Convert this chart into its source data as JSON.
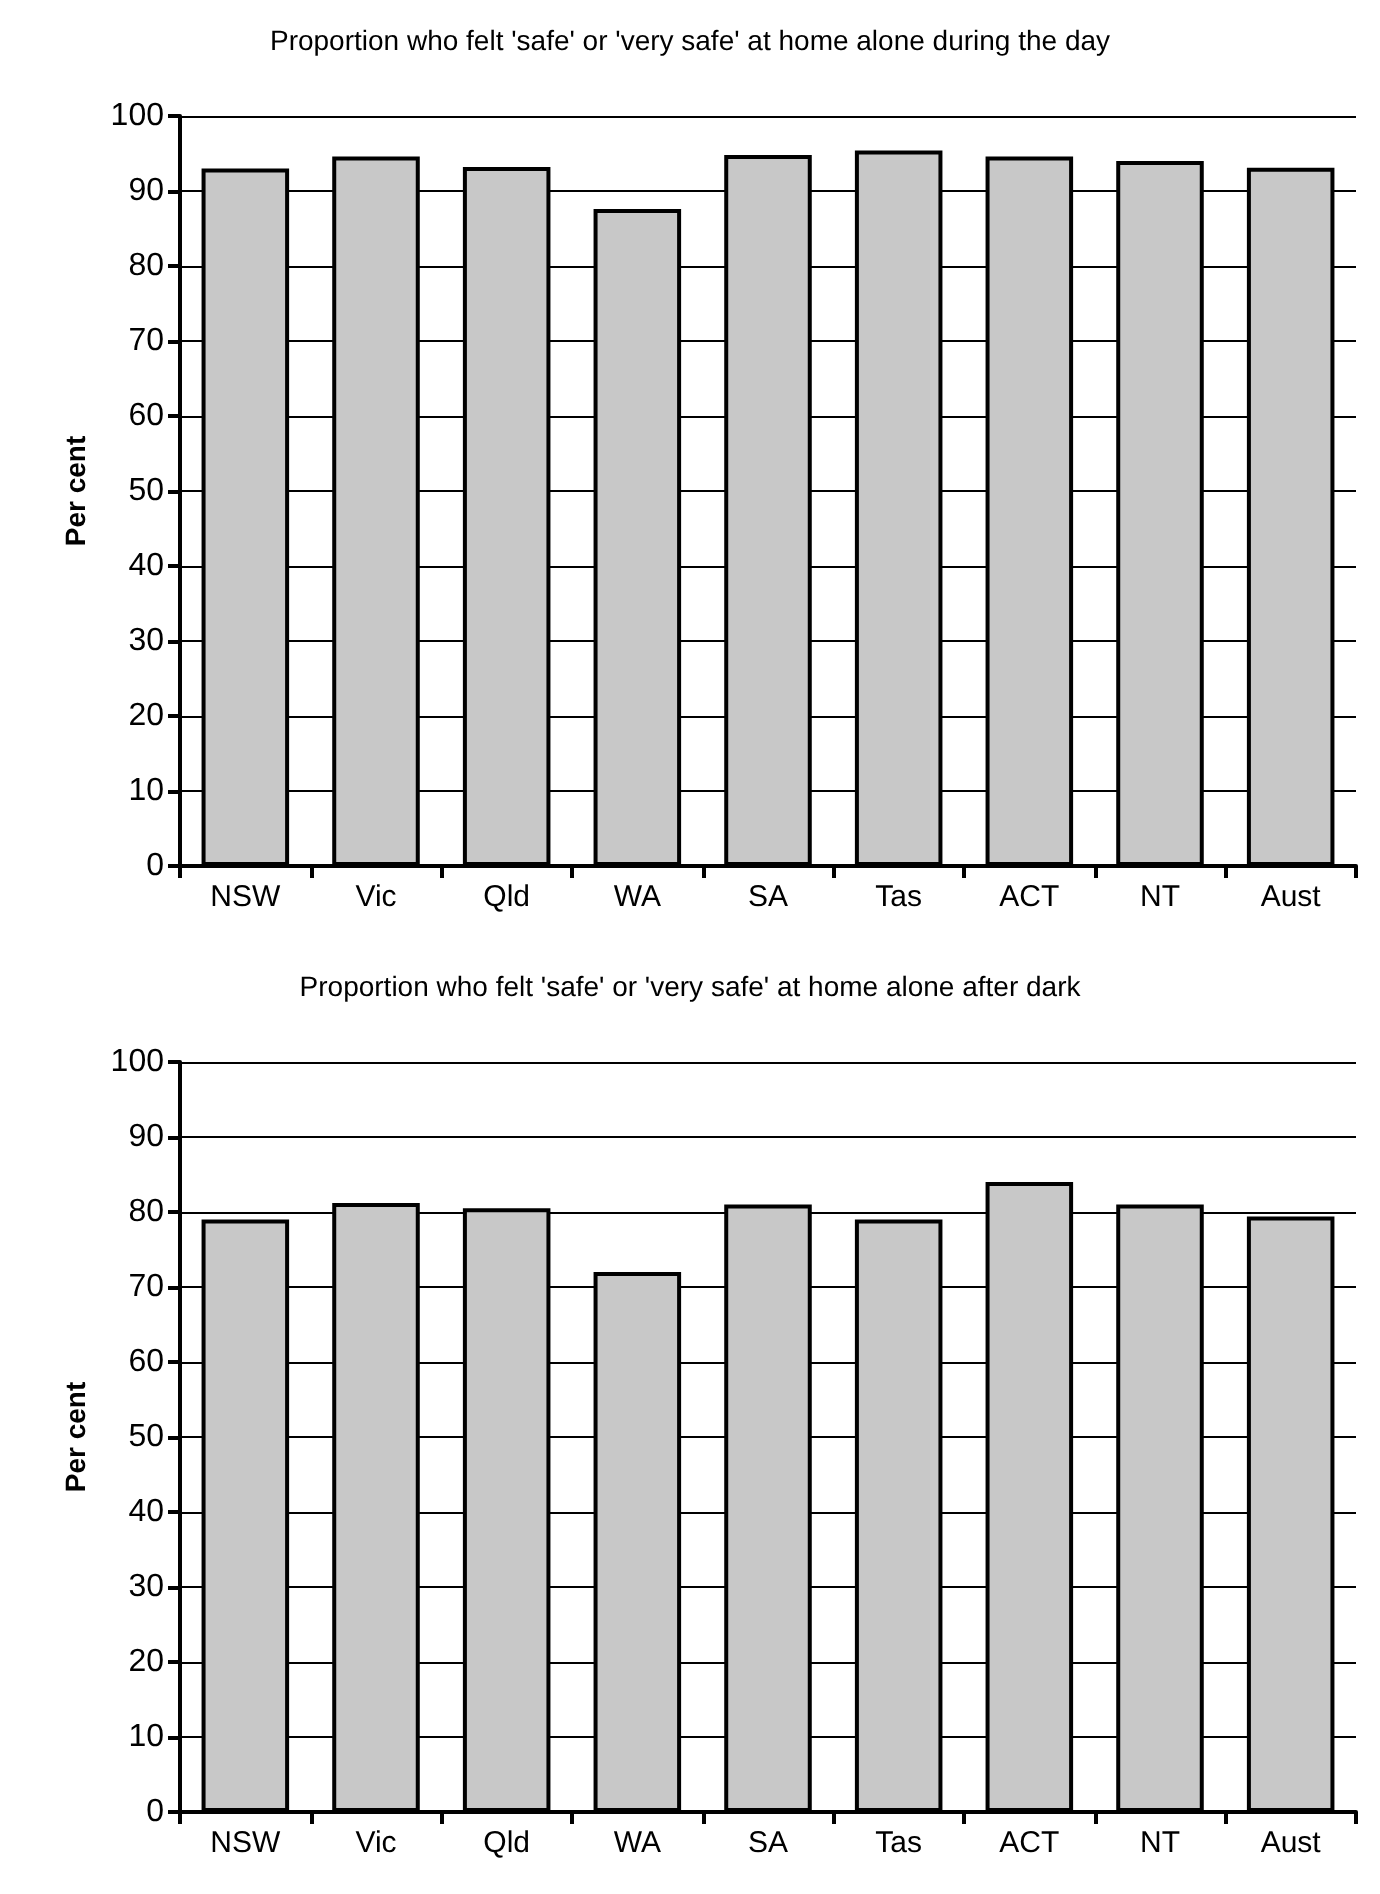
{
  "chart_data": [
    {
      "type": "bar",
      "title": "Proportion who felt 'safe' or 'very safe' at home alone during the day",
      "ylabel": "Per cent",
      "categories": [
        "NSW",
        "Vic",
        "Qld",
        "WA",
        "SA",
        "Tas",
        "ACT",
        "NT",
        "Aust"
      ],
      "values": [
        93.0,
        94.6,
        93.2,
        87.6,
        94.8,
        95.4,
        94.6,
        94.0,
        93.1
      ],
      "color": "#c8c8c8",
      "ylim": [
        0,
        100
      ],
      "yticks": [
        0,
        10,
        20,
        30,
        40,
        50,
        60,
        70,
        80,
        90,
        100
      ],
      "grid": "y"
    },
    {
      "type": "bar",
      "title": "Proportion who felt 'safe' or 'very safe' at home alone after dark",
      "ylabel": "Per cent",
      "categories": [
        "NSW",
        "Vic",
        "Qld",
        "WA",
        "SA",
        "Tas",
        "ACT",
        "NT",
        "Aust"
      ],
      "values": [
        79.0,
        81.2,
        80.5,
        72.0,
        81.0,
        79.0,
        84.0,
        81.0,
        79.4
      ],
      "color": "#c8c8c8",
      "ylim": [
        0,
        100
      ],
      "yticks": [
        0,
        10,
        20,
        30,
        40,
        50,
        60,
        70,
        80,
        90,
        100
      ],
      "grid": "y"
    }
  ]
}
